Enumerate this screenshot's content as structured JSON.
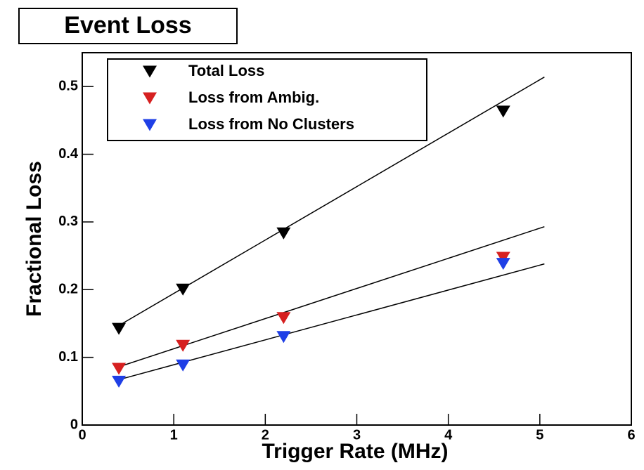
{
  "chart_data": {
    "type": "scatter",
    "title": "Event Loss",
    "x_label": "Trigger Rate (MHz)",
    "y_label": "Fractional Loss",
    "x": [
      0.4,
      1.1,
      2.2,
      4.6
    ],
    "series": [
      {
        "name": "Total Loss",
        "color": "#000000",
        "values": [
          0.142,
          0.2,
          0.283,
          0.463
        ]
      },
      {
        "name": "Loss from Ambig.",
        "color": "#d62020",
        "values": [
          0.083,
          0.117,
          0.158,
          0.247
        ]
      },
      {
        "name": "Loss from No Clusters",
        "color": "#1f3fe6",
        "values": [
          0.064,
          0.088,
          0.13,
          0.238
        ]
      }
    ],
    "fit_lines": [
      {
        "x": [
          0.4,
          5.05
        ],
        "values": [
          0.147,
          0.514
        ]
      },
      {
        "x": [
          0.4,
          5.05
        ],
        "values": [
          0.086,
          0.293
        ]
      },
      {
        "x": [
          0.4,
          5.05
        ],
        "values": [
          0.067,
          0.238
        ]
      }
    ],
    "xlim": [
      0,
      6
    ],
    "xticks": [
      0,
      1,
      2,
      3,
      4,
      5,
      6
    ],
    "ylim": [
      0,
      0.55
    ],
    "yticks": [
      0,
      0.1,
      0.2,
      0.3,
      0.4,
      0.5
    ],
    "grid": false,
    "legend": "top-left"
  }
}
